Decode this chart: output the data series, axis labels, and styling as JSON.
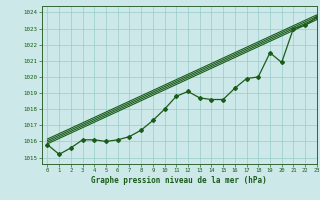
{
  "title": "Graphe pression niveau de la mer (hPa)",
  "xlabel": "Graphe pression niveau de la mer (hPa)",
  "xlim": [
    -0.5,
    23
  ],
  "ylim": [
    1014.6,
    1024.4
  ],
  "yticks": [
    1015,
    1016,
    1017,
    1018,
    1019,
    1020,
    1021,
    1022,
    1023,
    1024
  ],
  "xticks": [
    0,
    1,
    2,
    3,
    4,
    5,
    6,
    7,
    8,
    9,
    10,
    11,
    12,
    13,
    14,
    15,
    16,
    17,
    18,
    19,
    20,
    21,
    22,
    23
  ],
  "bg_color": "#cce8e8",
  "grid_color": "#99cccc",
  "line_color": "#1a5c1a",
  "hours": [
    0,
    1,
    2,
    3,
    4,
    5,
    6,
    7,
    8,
    9,
    10,
    11,
    12,
    13,
    14,
    15,
    16,
    17,
    18,
    19,
    20,
    21,
    22,
    23
  ],
  "pressure_main": [
    1015.8,
    1015.2,
    1015.6,
    1016.1,
    1016.1,
    1016.0,
    1016.1,
    1016.3,
    1016.7,
    1017.3,
    1018.0,
    1018.8,
    1019.1,
    1018.7,
    1018.6,
    1018.6,
    1019.3,
    1019.9,
    1020.0,
    1021.5,
    1020.9,
    1023.0,
    1023.2,
    1023.7
  ],
  "trend1_x": [
    0,
    23
  ],
  "trend1_y": [
    1015.85,
    1023.55
  ],
  "trend2_x": [
    0,
    23
  ],
  "trend2_y": [
    1015.95,
    1023.65
  ],
  "trend3_x": [
    0,
    23
  ],
  "trend3_y": [
    1016.05,
    1023.75
  ],
  "trend4_x": [
    0,
    23
  ],
  "trend4_y": [
    1016.15,
    1023.85
  ]
}
